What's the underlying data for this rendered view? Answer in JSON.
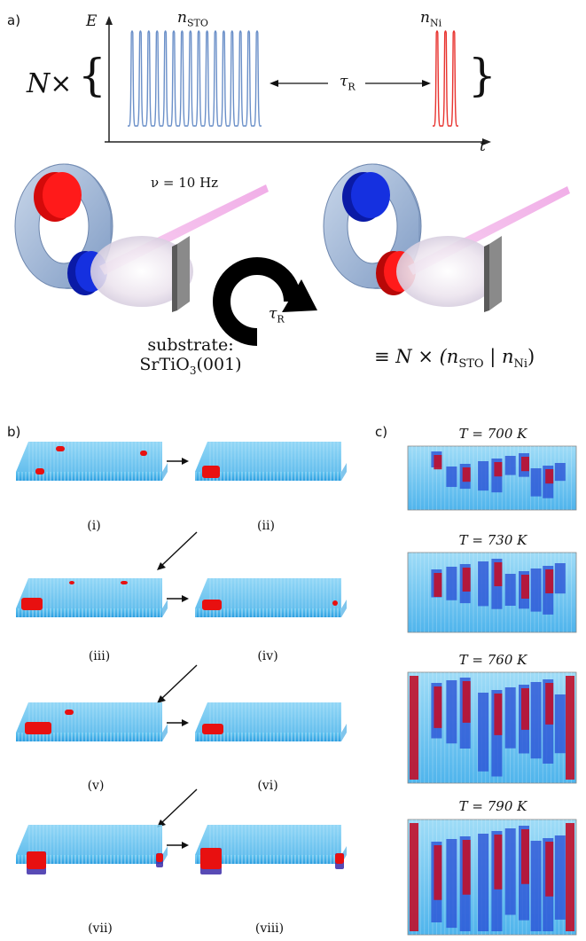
{
  "panel_a": {
    "label": "a)",
    "axis_e": "E",
    "axis_t": "t",
    "n_sto": "n",
    "n_sto_sub": "STO",
    "n_ni": "n",
    "n_ni_sub": "Ni",
    "tau": "τ",
    "tau_sub": "R",
    "multiplier": "N×",
    "brace_open": "{",
    "brace_close": "}",
    "nu_label": "ν = 10 Hz",
    "rot_tau": "τ",
    "rot_tau_sub": "R",
    "substrate_line1": "substrate:",
    "substrate_line2_pre": "SrTiO",
    "substrate_line2_sub": "3",
    "substrate_line2_post": "(001)",
    "equiv_formula": "≡ N × (n",
    "equiv_sub1": "STO",
    "equiv_mid": " | n",
    "equiv_sub2": "Ni",
    "equiv_end": ")",
    "colors": {
      "sto_pulse": "#6a8fc8",
      "ni_pulse": "#e8332f",
      "laser": "#f2a8e8",
      "target_red": "#ee1111",
      "target_blue": "#1428d8",
      "ring": "#a9bdd8"
    }
  },
  "panel_b": {
    "label": "b)",
    "captions": [
      "(i)",
      "(ii)",
      "(iii)",
      "(iv)",
      "(v)",
      "(vi)",
      "(vii)",
      "(viii)"
    ]
  },
  "panel_c": {
    "label": "c)",
    "temperatures": [
      "T = 700 K",
      "T = 730 K",
      "T = 760 K",
      "T = 790 K"
    ]
  }
}
